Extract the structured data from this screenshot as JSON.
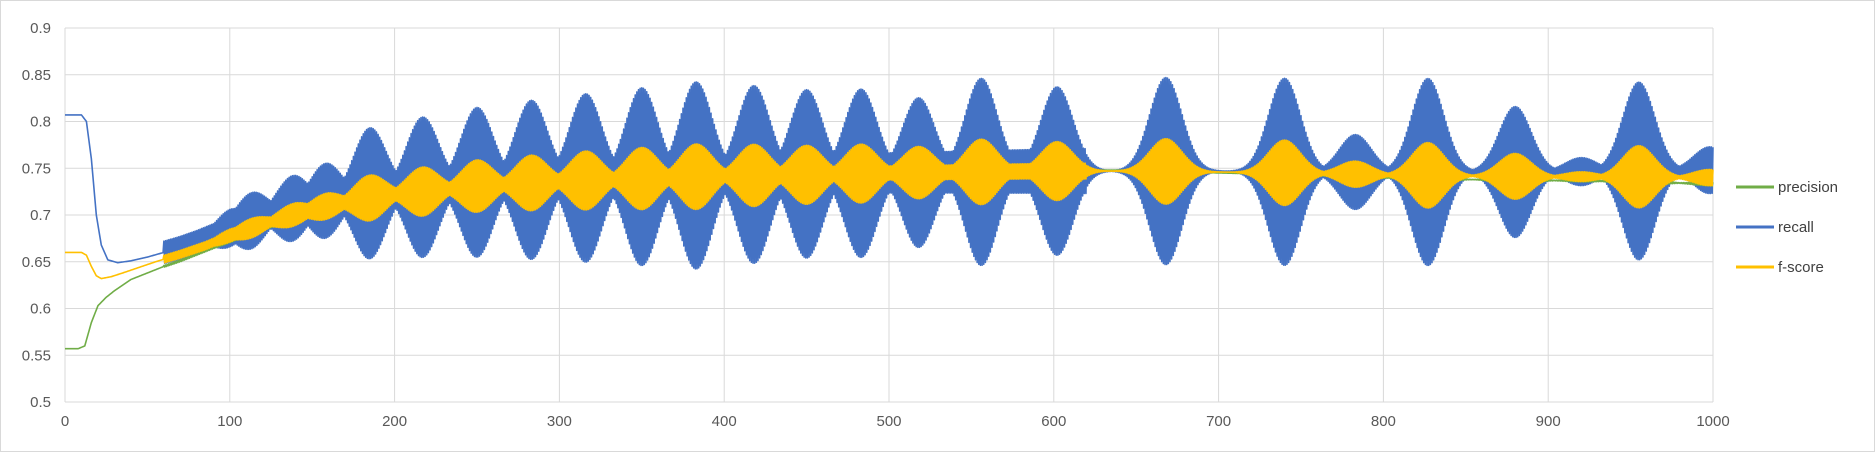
{
  "chart_data": {
    "type": "line",
    "title": "",
    "xlabel": "",
    "ylabel": "",
    "xlim": [
      0,
      1000
    ],
    "ylim": [
      0.5,
      0.9
    ],
    "x_ticks": [
      0,
      100,
      200,
      300,
      400,
      500,
      600,
      700,
      800,
      900,
      1000
    ],
    "y_ticks": [
      0.5,
      0.55,
      0.6,
      0.65,
      0.7,
      0.75,
      0.8,
      0.85,
      0.9
    ],
    "grid": true,
    "legend_position": "right",
    "series": [
      {
        "name": "precision",
        "color": "#70ad47",
        "points": [
          [
            0,
            0.557
          ],
          [
            8,
            0.557
          ],
          [
            12,
            0.56
          ],
          [
            16,
            0.585
          ],
          [
            20,
            0.603
          ],
          [
            25,
            0.612
          ],
          [
            30,
            0.619
          ],
          [
            35,
            0.625
          ],
          [
            40,
            0.631
          ],
          [
            50,
            0.638
          ],
          [
            60,
            0.645
          ],
          [
            70,
            0.651
          ],
          [
            80,
            0.658
          ],
          [
            90,
            0.665
          ],
          [
            100,
            0.672
          ],
          [
            120,
            0.685
          ],
          [
            140,
            0.696
          ],
          [
            160,
            0.705
          ],
          [
            180,
            0.712
          ],
          [
            200,
            0.718
          ],
          [
            250,
            0.728
          ],
          [
            300,
            0.734
          ],
          [
            350,
            0.738
          ],
          [
            400,
            0.741
          ],
          [
            450,
            0.743
          ],
          [
            500,
            0.745
          ],
          [
            550,
            0.746
          ],
          [
            600,
            0.748
          ],
          [
            650,
            0.748
          ],
          [
            700,
            0.745
          ],
          [
            750,
            0.743
          ],
          [
            800,
            0.74
          ],
          [
            850,
            0.738
          ],
          [
            900,
            0.737
          ],
          [
            950,
            0.736
          ],
          [
            1000,
            0.733
          ]
        ]
      },
      {
        "name": "recall",
        "color": "#4472c4",
        "points": [
          [
            0,
            0.807
          ],
          [
            10,
            0.807
          ],
          [
            13,
            0.8
          ],
          [
            16,
            0.76
          ],
          [
            19,
            0.7
          ],
          [
            22,
            0.668
          ],
          [
            26,
            0.652
          ],
          [
            32,
            0.649
          ],
          [
            40,
            0.651
          ],
          [
            50,
            0.655
          ],
          [
            60,
            0.66
          ],
          [
            70,
            0.665
          ],
          [
            80,
            0.671
          ],
          [
            90,
            0.678
          ],
          [
            100,
            0.686
          ],
          [
            120,
            0.698
          ],
          [
            140,
            0.708
          ],
          [
            160,
            0.716
          ],
          [
            180,
            0.722
          ],
          [
            200,
            0.727
          ],
          [
            250,
            0.735
          ],
          [
            300,
            0.739
          ],
          [
            350,
            0.741
          ],
          [
            400,
            0.743
          ],
          [
            450,
            0.744
          ],
          [
            500,
            0.745
          ],
          [
            550,
            0.746
          ],
          [
            600,
            0.747
          ],
          [
            650,
            0.747
          ],
          [
            700,
            0.747
          ],
          [
            750,
            0.746
          ],
          [
            800,
            0.746
          ],
          [
            850,
            0.746
          ],
          [
            900,
            0.746
          ],
          [
            950,
            0.747
          ],
          [
            1000,
            0.748
          ]
        ]
      },
      {
        "name": "f-score",
        "color": "#ffc000",
        "points": [
          [
            0,
            0.66
          ],
          [
            10,
            0.66
          ],
          [
            13,
            0.657
          ],
          [
            16,
            0.645
          ],
          [
            19,
            0.635
          ],
          [
            22,
            0.632
          ],
          [
            28,
            0.634
          ],
          [
            35,
            0.638
          ],
          [
            45,
            0.644
          ],
          [
            55,
            0.65
          ],
          [
            70,
            0.658
          ],
          [
            85,
            0.667
          ],
          [
            100,
            0.678
          ],
          [
            120,
            0.69
          ],
          [
            140,
            0.701
          ],
          [
            160,
            0.71
          ],
          [
            180,
            0.717
          ],
          [
            200,
            0.722
          ],
          [
            250,
            0.731
          ],
          [
            300,
            0.736
          ],
          [
            350,
            0.739
          ],
          [
            400,
            0.742
          ],
          [
            450,
            0.743
          ],
          [
            500,
            0.745
          ],
          [
            550,
            0.746
          ],
          [
            600,
            0.747
          ],
          [
            650,
            0.747
          ],
          [
            700,
            0.746
          ],
          [
            750,
            0.745
          ],
          [
            800,
            0.743
          ],
          [
            850,
            0.742
          ],
          [
            900,
            0.741
          ],
          [
            950,
            0.741
          ],
          [
            1000,
            0.74
          ]
        ]
      }
    ],
    "recall_oscillation_peaks": [
      {
        "x": 100,
        "amp": 0.02
      },
      {
        "x": 113,
        "amp": 0.03
      },
      {
        "x": 138,
        "amp": 0.035
      },
      {
        "x": 158,
        "amp": 0.04
      },
      {
        "x": 185,
        "amp": 0.07
      },
      {
        "x": 217,
        "amp": 0.075
      },
      {
        "x": 250,
        "amp": 0.08
      },
      {
        "x": 283,
        "amp": 0.085
      },
      {
        "x": 316,
        "amp": 0.09
      },
      {
        "x": 350,
        "amp": 0.095
      },
      {
        "x": 383,
        "amp": 0.1
      },
      {
        "x": 418,
        "amp": 0.095
      },
      {
        "x": 450,
        "amp": 0.09
      },
      {
        "x": 483,
        "amp": 0.09
      },
      {
        "x": 518,
        "amp": 0.08
      },
      {
        "x": 556,
        "amp": 0.1
      },
      {
        "x": 602,
        "amp": 0.09
      },
      {
        "x": 668,
        "amp": 0.1
      },
      {
        "x": 740,
        "amp": 0.1
      },
      {
        "x": 783,
        "amp": 0.04
      },
      {
        "x": 827,
        "amp": 0.1
      },
      {
        "x": 880,
        "amp": 0.07
      },
      {
        "x": 920,
        "amp": 0.015
      },
      {
        "x": 955,
        "amp": 0.095
      },
      {
        "x": 998,
        "amp": 0.025
      }
    ],
    "fscore_oscillation_ratio": 0.35,
    "precision_oscillation_ratio": 0.08
  }
}
